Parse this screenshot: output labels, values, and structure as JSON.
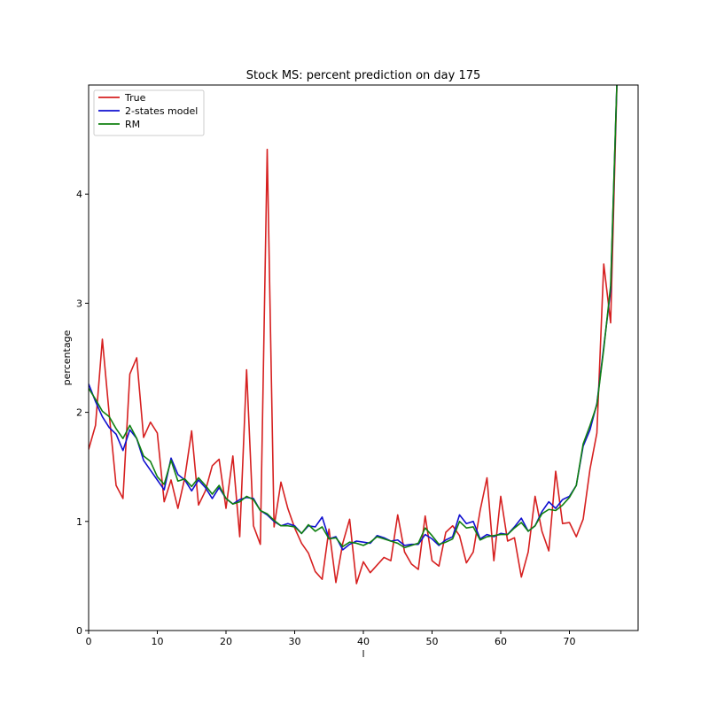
{
  "chart_data": {
    "type": "line",
    "title": "Stock MS: percent prediction on day 175",
    "xlabel": "l",
    "ylabel": "percentage",
    "xlim": [
      0,
      80
    ],
    "ylim": [
      0,
      5
    ],
    "xticks": [
      0,
      10,
      20,
      30,
      40,
      50,
      60,
      70
    ],
    "yticks": [
      0,
      1,
      2,
      3,
      4
    ],
    "grid": false,
    "legend_position": "top-left",
    "series": [
      {
        "name": "True",
        "color": "#d62020",
        "x": [
          0,
          1,
          2,
          3,
          4,
          5,
          6,
          7,
          8,
          9,
          10,
          11,
          12,
          13,
          14,
          15,
          16,
          17,
          18,
          19,
          20,
          21,
          22,
          23,
          24,
          25,
          26,
          27,
          28,
          29,
          30,
          31,
          32,
          33,
          34,
          35,
          36,
          37,
          38,
          39,
          40,
          41,
          42,
          43,
          44,
          45,
          46,
          47,
          48,
          49,
          50,
          51,
          52,
          53,
          54,
          55,
          56,
          57,
          58,
          59,
          60,
          61,
          62,
          63,
          64,
          65,
          66,
          67,
          68,
          69,
          70,
          71,
          72,
          73,
          74,
          75,
          76,
          77
        ],
        "values": [
          1.66,
          1.88,
          2.67,
          1.98,
          1.33,
          1.21,
          2.35,
          2.5,
          1.77,
          1.91,
          1.81,
          1.18,
          1.38,
          1.12,
          1.4,
          1.83,
          1.15,
          1.28,
          1.51,
          1.57,
          1.12,
          1.6,
          0.86,
          2.39,
          0.96,
          0.79,
          4.41,
          0.95,
          1.36,
          1.12,
          0.94,
          0.8,
          0.71,
          0.54,
          0.47,
          0.93,
          0.44,
          0.8,
          1.02,
          0.43,
          0.63,
          0.53,
          0.6,
          0.67,
          0.64,
          1.06,
          0.72,
          0.61,
          0.56,
          1.05,
          0.64,
          0.59,
          0.9,
          0.96,
          0.87,
          0.62,
          0.72,
          1.1,
          1.4,
          0.64,
          1.23,
          0.82,
          0.85,
          0.49,
          0.72,
          1.23,
          0.91,
          0.73,
          1.46,
          0.98,
          0.99,
          0.86,
          1.02,
          1.48,
          1.81,
          3.36,
          2.82,
          5.2
        ]
      },
      {
        "name": "2-states model",
        "color": "#1010d0",
        "x": [
          0,
          1,
          2,
          3,
          4,
          5,
          6,
          7,
          8,
          9,
          10,
          11,
          12,
          13,
          14,
          15,
          16,
          17,
          18,
          19,
          20,
          21,
          22,
          23,
          24,
          25,
          26,
          27,
          28,
          29,
          30,
          31,
          32,
          33,
          34,
          35,
          36,
          37,
          38,
          39,
          40,
          41,
          42,
          43,
          44,
          45,
          46,
          47,
          48,
          49,
          50,
          51,
          52,
          53,
          54,
          55,
          56,
          57,
          58,
          59,
          60,
          61,
          62,
          63,
          64,
          65,
          66,
          67,
          68,
          69,
          70,
          71,
          72,
          73,
          74,
          75,
          76,
          77
        ],
        "values": [
          2.26,
          2.1,
          1.96,
          1.86,
          1.8,
          1.65,
          1.84,
          1.76,
          1.56,
          1.47,
          1.38,
          1.29,
          1.58,
          1.43,
          1.38,
          1.28,
          1.38,
          1.31,
          1.21,
          1.31,
          1.21,
          1.16,
          1.2,
          1.22,
          1.21,
          1.1,
          1.06,
          1.0,
          0.96,
          0.98,
          0.96,
          0.89,
          0.96,
          0.95,
          1.04,
          0.84,
          0.86,
          0.74,
          0.79,
          0.82,
          0.81,
          0.8,
          0.87,
          0.85,
          0.82,
          0.83,
          0.78,
          0.79,
          0.79,
          0.88,
          0.84,
          0.78,
          0.83,
          0.86,
          1.06,
          0.98,
          1.0,
          0.84,
          0.88,
          0.86,
          0.89,
          0.88,
          0.95,
          1.03,
          0.91,
          0.96,
          1.09,
          1.18,
          1.12,
          1.2,
          1.23,
          1.33,
          1.69,
          1.84,
          2.08,
          2.6,
          3.12,
          5.2
        ]
      },
      {
        "name": "RM",
        "color": "#108010",
        "x": [
          0,
          1,
          2,
          3,
          4,
          5,
          6,
          7,
          8,
          9,
          10,
          11,
          12,
          13,
          14,
          15,
          16,
          17,
          18,
          19,
          20,
          21,
          22,
          23,
          24,
          25,
          26,
          27,
          28,
          29,
          30,
          31,
          32,
          33,
          34,
          35,
          36,
          37,
          38,
          39,
          40,
          41,
          42,
          43,
          44,
          45,
          46,
          47,
          48,
          49,
          50,
          51,
          52,
          53,
          54,
          55,
          56,
          57,
          58,
          59,
          60,
          61,
          62,
          63,
          64,
          65,
          66,
          67,
          68,
          69,
          70,
          71,
          72,
          73,
          74,
          75,
          76,
          77
        ],
        "values": [
          2.22,
          2.12,
          2.01,
          1.96,
          1.85,
          1.76,
          1.88,
          1.76,
          1.6,
          1.55,
          1.41,
          1.34,
          1.56,
          1.37,
          1.39,
          1.32,
          1.4,
          1.33,
          1.25,
          1.33,
          1.21,
          1.16,
          1.18,
          1.23,
          1.2,
          1.1,
          1.07,
          1.01,
          0.96,
          0.96,
          0.95,
          0.89,
          0.97,
          0.91,
          0.95,
          0.84,
          0.85,
          0.77,
          0.81,
          0.8,
          0.78,
          0.81,
          0.86,
          0.84,
          0.82,
          0.8,
          0.76,
          0.78,
          0.8,
          0.94,
          0.87,
          0.79,
          0.81,
          0.84,
          1.0,
          0.94,
          0.95,
          0.83,
          0.86,
          0.87,
          0.88,
          0.88,
          0.94,
          0.99,
          0.91,
          0.96,
          1.07,
          1.11,
          1.1,
          1.15,
          1.22,
          1.33,
          1.71,
          1.88,
          2.07,
          2.58,
          3.16,
          5.2
        ]
      }
    ]
  }
}
